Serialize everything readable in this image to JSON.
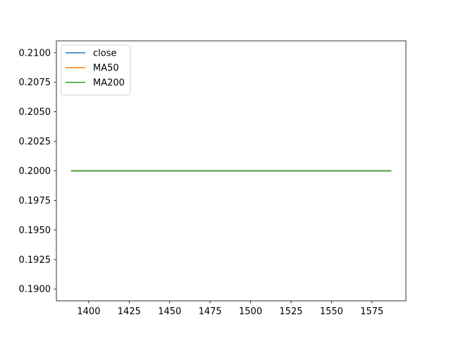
{
  "chart_data": {
    "type": "line",
    "title": "",
    "xlabel": "",
    "ylabel": "",
    "xlim": [
      1380,
      1596
    ],
    "ylim": [
      0.189,
      0.211
    ],
    "xticks": [
      1400,
      1425,
      1450,
      1475,
      1500,
      1525,
      1550,
      1575
    ],
    "xtick_labels": [
      "1400",
      "1425",
      "1450",
      "1475",
      "1500",
      "1525",
      "1550",
      "1575"
    ],
    "yticks": [
      0.19,
      0.1925,
      0.195,
      0.1975,
      0.2,
      0.2025,
      0.205,
      0.2075,
      0.21
    ],
    "ytick_labels": [
      "0.1900",
      "0.1925",
      "0.1950",
      "0.1975",
      "0.2000",
      "0.2025",
      "0.2050",
      "0.2075",
      "0.2100"
    ],
    "grid": false,
    "legend_position": "upper-left",
    "series": [
      {
        "name": "close",
        "color": "#1f77b4",
        "x": [
          1389,
          1587
        ],
        "y": [
          0.2,
          0.2
        ]
      },
      {
        "name": "MA50",
        "color": "#ff7f0e",
        "x": [
          1389,
          1587
        ],
        "y": [
          0.2,
          0.2
        ]
      },
      {
        "name": "MA200",
        "color": "#2ca02c",
        "x": [
          1389,
          1587
        ],
        "y": [
          0.2,
          0.2
        ]
      }
    ]
  }
}
